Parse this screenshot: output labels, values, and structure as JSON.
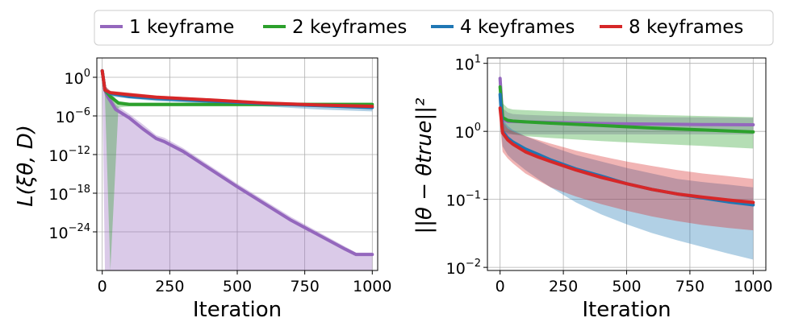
{
  "colors": {
    "purple": "#9467bd",
    "green": "#2ca02c",
    "blue": "#1f77b4",
    "red": "#d62728",
    "grid": "#b0b0b0"
  },
  "legend": {
    "placement": "top-center",
    "entries": [
      {
        "label": "1 keyframe",
        "color": "#9467bd"
      },
      {
        "label": "2 keyframes",
        "color": "#2ca02c"
      },
      {
        "label": "4 keyframes",
        "color": "#1f77b4"
      },
      {
        "label": "8 keyframes",
        "color": "#d62728"
      }
    ]
  },
  "chart_data": [
    {
      "type": "line",
      "xlabel": "Iteration",
      "ylabel": "L(ξθ, D)",
      "yscale": "log",
      "xlim": [
        -20,
        1020
      ],
      "ylim": [
        1e-30,
        1000.0
      ],
      "grid": true,
      "xticks": [
        0,
        250,
        500,
        750,
        1000
      ],
      "yticks": [
        {
          "value": 1,
          "label": "10",
          "exp": "0"
        },
        {
          "value": 1e-06,
          "label": "10",
          "exp": "−6"
        },
        {
          "value": 1e-12,
          "label": "10",
          "exp": "−12"
        },
        {
          "value": 1e-18,
          "label": "10",
          "exp": "−18"
        },
        {
          "value": 1e-24,
          "label": "10",
          "exp": "−24"
        }
      ],
      "series": [
        {
          "name": "1 keyframe",
          "color": "#9467bd",
          "x": [
            0,
            10,
            20,
            50,
            100,
            150,
            200,
            230,
            300,
            500,
            700,
            900,
            940,
            1000
          ],
          "y": [
            10,
            0.01,
            0.001,
            1e-05,
            5e-07,
            1e-08,
            3e-10,
            1e-10,
            3e-12,
            1e-17,
            6e-23,
            2e-27,
            3e-28,
            3e-28
          ],
          "band_low": [
            1,
            1e-30,
            1e-30,
            1e-30,
            1e-30,
            1e-30,
            1e-30,
            1e-30,
            1e-30,
            1e-30,
            1e-30,
            1e-30,
            1e-30,
            1e-30
          ],
          "band_high": [
            30,
            0.05,
            0.005,
            5e-05,
            2e-06,
            5e-08,
            1e-09,
            4e-10,
            1e-11,
            3e-17,
            2e-22,
            5e-27,
            6e-28,
            6e-28
          ]
        },
        {
          "name": "2 keyframes",
          "color": "#2ca02c",
          "x": [
            0,
            10,
            30,
            60,
            100,
            200,
            500,
            800,
            1000
          ],
          "y": [
            10,
            0.01,
            0.001,
            0.0001,
            6e-05,
            6e-05,
            6e-05,
            6e-05,
            6e-05
          ],
          "band_low": [
            1,
            0.001,
            1e-30,
            2e-05,
            3e-05,
            3e-05,
            3e-05,
            3e-05,
            3e-05
          ],
          "band_high": [
            30,
            0.05,
            0.003,
            0.0002,
            0.00012,
            0.00012,
            0.00012,
            0.00012,
            0.00012
          ]
        },
        {
          "name": "4 keyframes",
          "color": "#1f77b4",
          "x": [
            0,
            10,
            30,
            100,
            200,
            400,
            600,
            800,
            1000
          ],
          "y": [
            10,
            0.01,
            0.003,
            0.001,
            0.0005,
            0.0002,
            8e-05,
            4e-05,
            2e-05
          ],
          "band_low": [
            1,
            0.005,
            0.001,
            0.0005,
            0.0002,
            8e-05,
            3e-05,
            1e-05,
            5e-06
          ],
          "band_high": [
            30,
            0.05,
            0.006,
            0.002,
            0.001,
            0.0003,
            0.00012,
            7e-05,
            4e-05
          ]
        },
        {
          "name": "8 keyframes",
          "color": "#d62728",
          "x": [
            0,
            10,
            30,
            100,
            200,
            400,
            600,
            800,
            1000
          ],
          "y": [
            10,
            0.01,
            0.004,
            0.002,
            0.0008,
            0.0003,
            0.0001,
            5e-05,
            3e-05
          ],
          "band_low": [
            1,
            0.005,
            0.002,
            0.001,
            0.0004,
            0.00015,
            5e-05,
            2.5e-05,
            1.5e-05
          ],
          "band_high": [
            30,
            0.05,
            0.008,
            0.004,
            0.0015,
            0.0005,
            0.00018,
            9e-05,
            5e-05
          ]
        }
      ]
    },
    {
      "type": "line",
      "xlabel": "Iteration",
      "ylabel": "||θ − θtrue||²",
      "yscale": "log",
      "xlim": [
        -50,
        1050
      ],
      "ylim": [
        0.009,
        12
      ],
      "grid": true,
      "xticks": [
        0,
        250,
        500,
        750,
        1000
      ],
      "yticks": [
        {
          "value": 10,
          "label": "10",
          "exp": "1"
        },
        {
          "value": 1,
          "label": "10",
          "exp": "0"
        },
        {
          "value": 0.1,
          "label": "10",
          "exp": "−1"
        },
        {
          "value": 0.01,
          "label": "10",
          "exp": "−2"
        }
      ],
      "series": [
        {
          "name": "1 keyframe",
          "color": "#9467bd",
          "x": [
            0,
            10,
            30,
            50,
            100,
            200,
            400,
            600,
            800,
            1000
          ],
          "y": [
            6,
            1.5,
            1.4,
            1.4,
            1.38,
            1.35,
            1.3,
            1.28,
            1.26,
            1.25
          ],
          "band_low": [
            2,
            0.9,
            0.9,
            0.9,
            0.9,
            0.9,
            0.9,
            0.9,
            0.9,
            0.9
          ],
          "band_high": [
            8,
            2.2,
            1.9,
            1.8,
            1.75,
            1.7,
            1.65,
            1.62,
            1.6,
            1.58
          ]
        },
        {
          "name": "2 keyframes",
          "color": "#2ca02c",
          "x": [
            0,
            10,
            30,
            50,
            100,
            200,
            400,
            600,
            800,
            1000
          ],
          "y": [
            4.5,
            1.6,
            1.45,
            1.42,
            1.38,
            1.32,
            1.22,
            1.12,
            1.05,
            0.98
          ],
          "band_low": [
            2,
            1.0,
            0.95,
            0.9,
            0.85,
            0.8,
            0.72,
            0.66,
            0.61,
            0.56
          ],
          "band_high": [
            6,
            2.6,
            2.2,
            2.1,
            2.05,
            1.98,
            1.85,
            1.75,
            1.68,
            1.62
          ]
        },
        {
          "name": "4 keyframes",
          "color": "#1f77b4",
          "x": [
            0,
            10,
            30,
            50,
            100,
            150,
            200,
            300,
            400,
            500,
            600,
            700,
            800,
            900,
            1000
          ],
          "y": [
            3.5,
            1.0,
            0.8,
            0.7,
            0.55,
            0.46,
            0.38,
            0.28,
            0.22,
            0.17,
            0.14,
            0.12,
            0.105,
            0.092,
            0.083
          ],
          "band_low": [
            1.5,
            0.6,
            0.45,
            0.38,
            0.27,
            0.2,
            0.15,
            0.09,
            0.06,
            0.043,
            0.032,
            0.025,
            0.02,
            0.016,
            0.013
          ],
          "band_high": [
            5,
            1.5,
            1.2,
            1.05,
            0.85,
            0.72,
            0.6,
            0.45,
            0.36,
            0.29,
            0.24,
            0.2,
            0.18,
            0.165,
            0.15
          ]
        },
        {
          "name": "8 keyframes",
          "color": "#d62728",
          "x": [
            0,
            10,
            30,
            50,
            100,
            150,
            200,
            300,
            400,
            500,
            600,
            700,
            800,
            900,
            1000
          ],
          "y": [
            2.2,
            0.95,
            0.75,
            0.65,
            0.5,
            0.42,
            0.36,
            0.27,
            0.21,
            0.17,
            0.14,
            0.12,
            0.108,
            0.098,
            0.09
          ],
          "band_low": [
            1.2,
            0.5,
            0.4,
            0.34,
            0.24,
            0.19,
            0.15,
            0.11,
            0.085,
            0.068,
            0.056,
            0.048,
            0.042,
            0.038,
            0.035
          ],
          "band_high": [
            3,
            1.4,
            1.1,
            1.0,
            0.85,
            0.75,
            0.66,
            0.52,
            0.43,
            0.36,
            0.31,
            0.27,
            0.24,
            0.22,
            0.2
          ]
        }
      ]
    }
  ]
}
